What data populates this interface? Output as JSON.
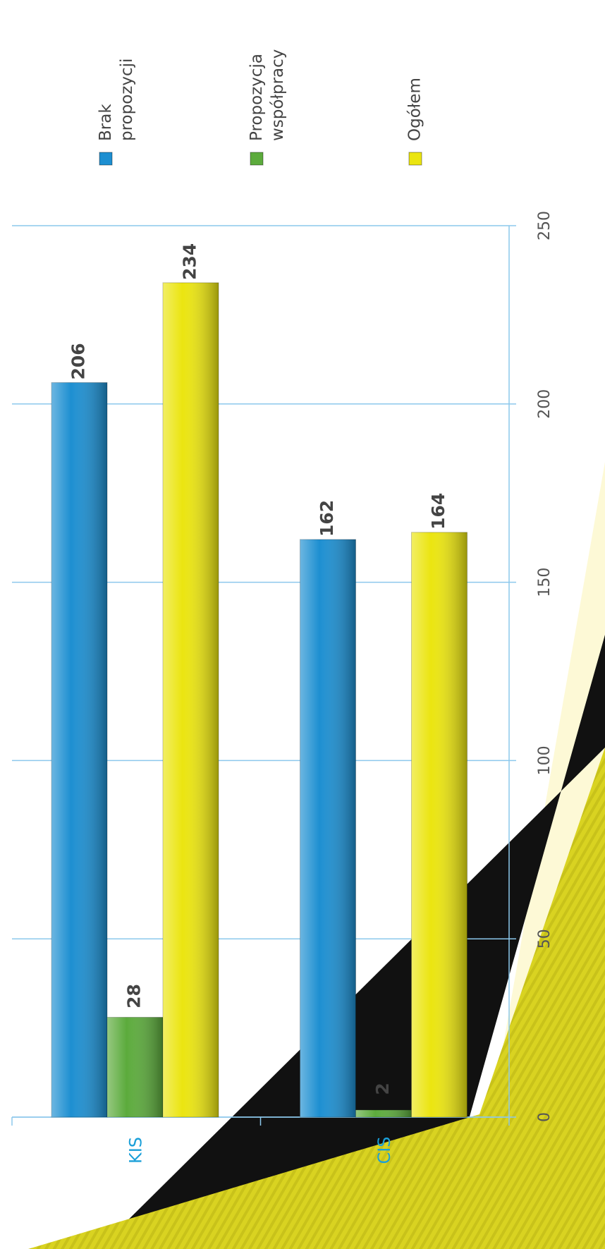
{
  "chart_data": {
    "type": "bar",
    "categories": [
      "KIS",
      "CIS"
    ],
    "series": [
      {
        "name": "Brak propozycji",
        "color": "#1d8fd1",
        "values": [
          206,
          162
        ]
      },
      {
        "name": "Propozycja współpracy",
        "color": "#5cab3c",
        "values": [
          28,
          2
        ]
      },
      {
        "name": "Ogółem",
        "color": "#ebe510",
        "values": [
          234,
          164
        ]
      }
    ],
    "ylim": [
      0,
      250
    ],
    "yticks": [
      0,
      50,
      100,
      150,
      200,
      250
    ],
    "grid": true
  }
}
